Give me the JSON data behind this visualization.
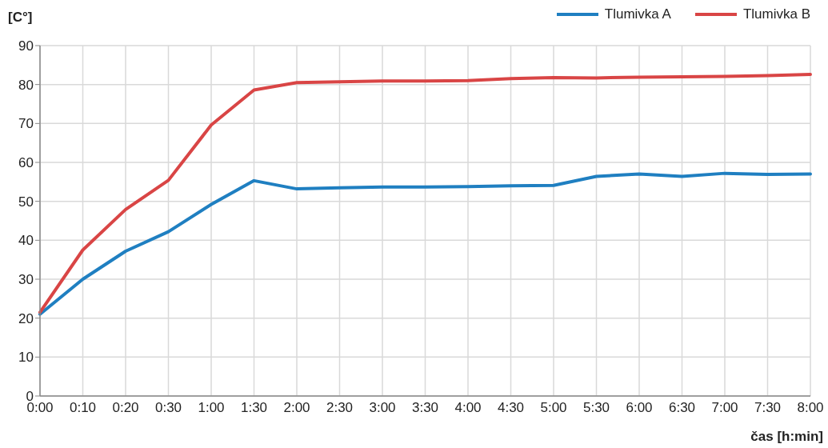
{
  "chart_data": {
    "type": "line",
    "ylabel": "[C°]",
    "xlabel": "čas [h:min]",
    "categories": [
      "0:00",
      "0:10",
      "0:20",
      "0:30",
      "1:00",
      "1:30",
      "2:00",
      "2:30",
      "3:00",
      "3:30",
      "4:00",
      "4:30",
      "5:00",
      "5:30",
      "6:00",
      "6:30",
      "7:00",
      "7:30",
      "8:00"
    ],
    "series": [
      {
        "name": "Tlumivka A",
        "color": "#1f7fc1",
        "values": [
          21,
          30,
          37.2,
          42.2,
          49.2,
          55.3,
          53.2,
          53.5,
          53.7,
          53.7,
          53.8,
          54,
          54.1,
          56.4,
          57,
          56.4,
          57.2,
          56.9,
          57
        ]
      },
      {
        "name": "Tlumivka B",
        "color": "#d94545",
        "values": [
          21.5,
          37.5,
          47.9,
          55.4,
          69.6,
          78.6,
          80.5,
          80.7,
          80.9,
          80.9,
          81,
          81.5,
          81.8,
          81.7,
          81.9,
          82,
          82.1,
          82.3,
          82.6
        ]
      }
    ],
    "ylim": [
      0,
      90
    ],
    "yticks": [
      0,
      10,
      20,
      30,
      40,
      50,
      60,
      70,
      80,
      90
    ],
    "grid": true,
    "legend": "top right",
    "marker": "none",
    "line_style": "solid"
  }
}
